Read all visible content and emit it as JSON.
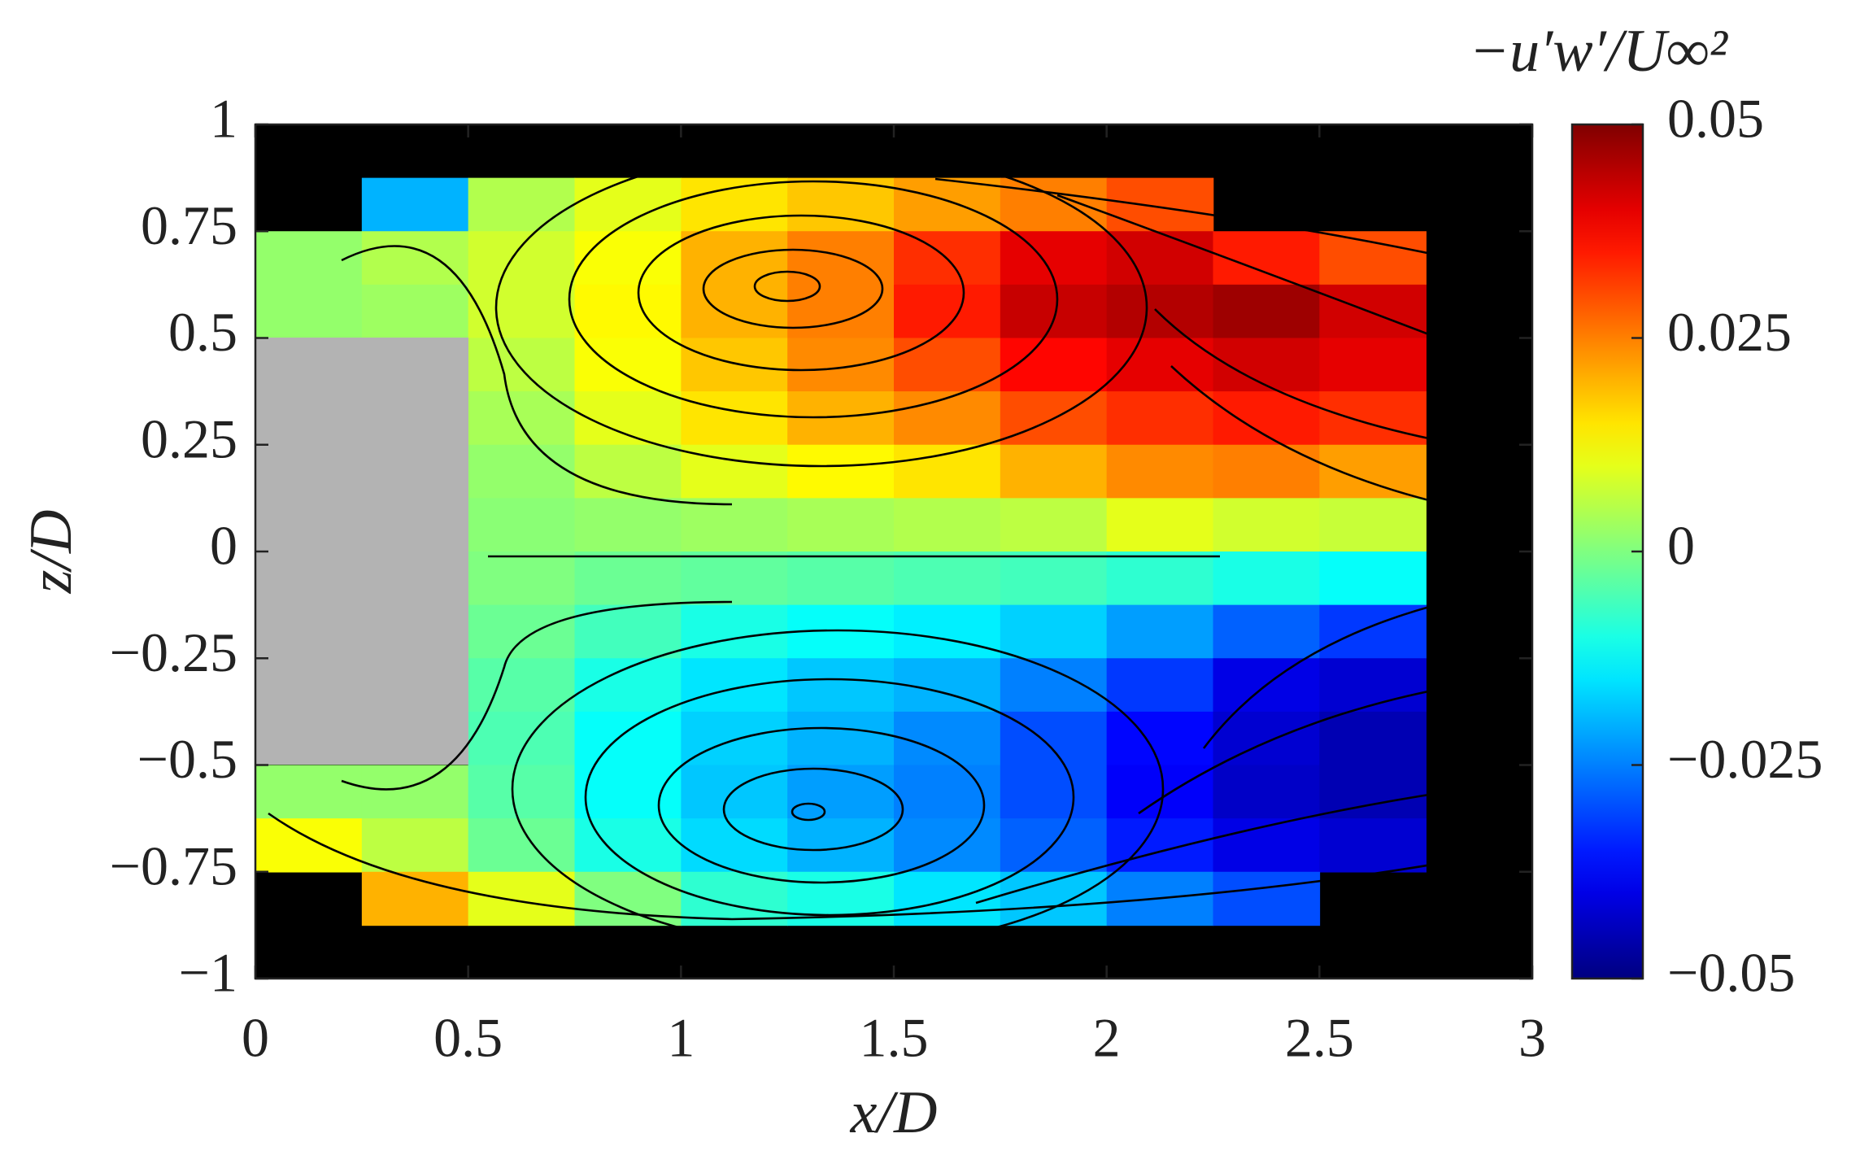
{
  "chart_data": {
    "type": "contour",
    "xlabel": "x/D",
    "ylabel": "z/D",
    "colorbar_label": "−u′w′/U∞²",
    "colormap": "jet",
    "xlim": [
      0,
      3
    ],
    "xticks": [
      0,
      0.5,
      1,
      1.5,
      2,
      2.5,
      3
    ],
    "ylim": [
      -1,
      1
    ],
    "yticks": [
      {
        "value": -1,
        "label": "−1"
      },
      {
        "value": -0.75,
        "label": "−0.75"
      },
      {
        "value": -0.5,
        "label": "−0.5"
      },
      {
        "value": -0.25,
        "label": "−0.25"
      },
      0,
      0.25,
      0.5,
      0.75,
      1
    ],
    "clim": [
      -0.05,
      0.05
    ],
    "cticks": [
      {
        "value": -0.05,
        "label": "−0.05"
      },
      {
        "value": -0.025,
        "label": "−0.025"
      },
      0,
      0.025,
      0.05
    ],
    "field": {
      "x": [
        0.125,
        0.375,
        0.625,
        0.875,
        1.125,
        1.375,
        1.625,
        1.875,
        2.125,
        2.375,
        2.625
      ],
      "z": [
        0.9375,
        0.8125,
        0.6875,
        0.5625,
        0.4375,
        0.3125,
        0.1875,
        0.0625,
        -0.0625,
        -0.1875,
        -0.3125,
        -0.4375,
        -0.5625,
        -0.6875,
        -0.8125,
        -0.9375
      ],
      "values": [
        [
          null,
          null,
          null,
          null,
          null,
          null,
          null,
          null,
          null,
          null,
          null
        ],
        [
          null,
          -0.02,
          0.005,
          0.01,
          0.015,
          0.018,
          0.022,
          0.025,
          0.03,
          null,
          null
        ],
        [
          0.002,
          0.005,
          0.008,
          0.012,
          0.02,
          0.025,
          0.033,
          0.04,
          0.042,
          0.035,
          0.03
        ],
        [
          0.002,
          0.003,
          0.008,
          0.013,
          0.02,
          0.025,
          0.035,
          0.043,
          0.045,
          0.047,
          0.042
        ],
        [
          null,
          null,
          0.006,
          0.012,
          0.018,
          0.024,
          0.03,
          0.037,
          0.04,
          0.042,
          0.04
        ],
        [
          null,
          null,
          0.004,
          0.01,
          0.015,
          0.02,
          0.024,
          0.03,
          0.033,
          0.035,
          0.033
        ],
        [
          null,
          null,
          0.002,
          0.006,
          0.01,
          0.013,
          0.015,
          0.02,
          0.024,
          0.025,
          0.022
        ],
        [
          null,
          null,
          0.001,
          0.002,
          0.003,
          0.004,
          0.005,
          0.006,
          0.01,
          0.008,
          0.007
        ],
        [
          null,
          null,
          0,
          -0.002,
          -0.003,
          -0.004,
          -0.005,
          -0.006,
          -0.008,
          -0.01,
          -0.012
        ],
        [
          null,
          null,
          -0.002,
          -0.006,
          -0.01,
          -0.012,
          -0.014,
          -0.017,
          -0.022,
          -0.028,
          -0.032
        ],
        [
          null,
          null,
          -0.004,
          -0.01,
          -0.015,
          -0.018,
          -0.02,
          -0.025,
          -0.032,
          -0.04,
          -0.042
        ],
        [
          null,
          null,
          -0.005,
          -0.012,
          -0.017,
          -0.02,
          -0.024,
          -0.03,
          -0.037,
          -0.042,
          -0.045
        ],
        [
          0.002,
          0.002,
          -0.004,
          -0.012,
          -0.018,
          -0.022,
          -0.025,
          -0.03,
          -0.038,
          -0.043,
          -0.045
        ],
        [
          0.012,
          0.006,
          -0.002,
          -0.01,
          -0.016,
          -0.02,
          -0.024,
          -0.028,
          -0.035,
          -0.04,
          -0.042
        ],
        [
          null,
          0.02,
          0.01,
          0,
          -0.008,
          -0.01,
          -0.015,
          -0.018,
          -0.025,
          -0.03,
          null
        ],
        [
          null,
          null,
          null,
          null,
          null,
          null,
          null,
          null,
          null,
          null,
          null
        ]
      ]
    }
  }
}
